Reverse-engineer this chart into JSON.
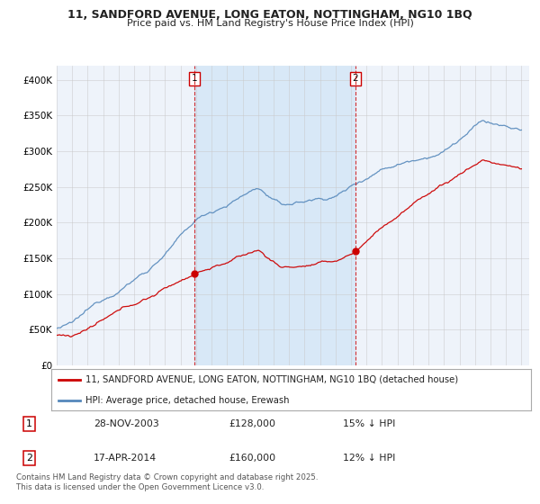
{
  "title1": "11, SANDFORD AVENUE, LONG EATON, NOTTINGHAM, NG10 1BQ",
  "title2": "Price paid vs. HM Land Registry's House Price Index (HPI)",
  "ylim": [
    0,
    420000
  ],
  "yticks": [
    0,
    50000,
    100000,
    150000,
    200000,
    250000,
    300000,
    350000,
    400000
  ],
  "ytick_labels": [
    "£0",
    "£50K",
    "£100K",
    "£150K",
    "£200K",
    "£250K",
    "£300K",
    "£350K",
    "£400K"
  ],
  "xlim_start": 1995,
  "xlim_end": 2025.5,
  "sale1_date": 2003.91,
  "sale1_price": 128000,
  "sale2_date": 2014.29,
  "sale2_price": 160000,
  "legend_red": "11, SANDFORD AVENUE, LONG EATON, NOTTINGHAM, NG10 1BQ (detached house)",
  "legend_blue": "HPI: Average price, detached house, Erewash",
  "annotation1_date": "28-NOV-2003",
  "annotation1_price": "£128,000",
  "annotation1_hpi": "15% ↓ HPI",
  "annotation2_date": "17-APR-2014",
  "annotation2_price": "£160,000",
  "annotation2_hpi": "12% ↓ HPI",
  "footnote": "Contains HM Land Registry data © Crown copyright and database right 2025.\nThis data is licensed under the Open Government Licence v3.0.",
  "red_color": "#cc0000",
  "blue_color": "#5588bb",
  "shade_color": "#d0e4f7",
  "bg_color": "#eef3fa",
  "grid_color": "#c8c8c8",
  "title_color": "#222222"
}
